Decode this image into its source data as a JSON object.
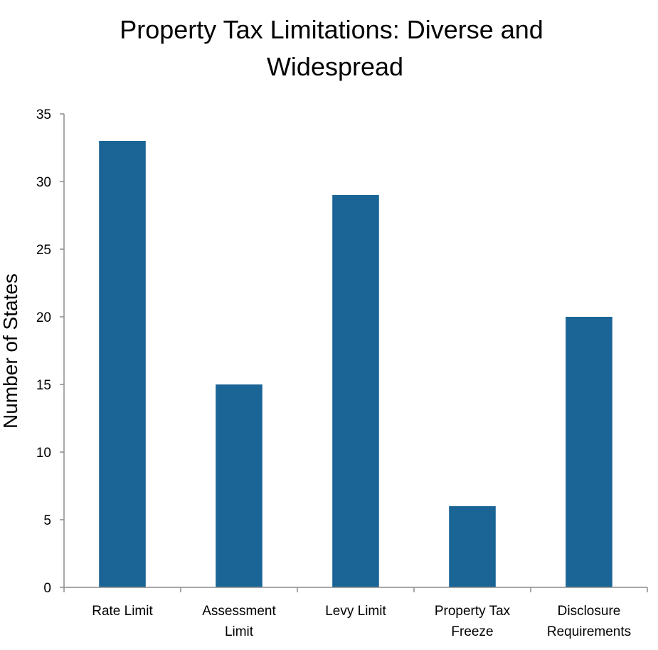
{
  "chart_data": {
    "type": "bar",
    "title": "Property Tax Limitations: Diverse and Widespread",
    "title_lines": [
      "Property Tax Limitations: Diverse and",
      "Widespread"
    ],
    "ylabel": "Number of States",
    "xlabel": "",
    "ylim": [
      0,
      35
    ],
    "yticks": [
      0,
      5,
      10,
      15,
      20,
      25,
      30,
      35
    ],
    "ytick_labels": [
      "0",
      "5",
      "10",
      "15",
      "20",
      "25",
      "30",
      "35"
    ],
    "categories": [
      "Rate Limit",
      "Assessment Limit",
      "Levy Limit",
      "Property Tax Freeze",
      "Disclosure Requirements"
    ],
    "category_lines": [
      [
        "Rate Limit"
      ],
      [
        "Assessment",
        "Limit"
      ],
      [
        "Levy Limit"
      ],
      [
        "Property Tax",
        "Freeze"
      ],
      [
        "Disclosure",
        "Requirements"
      ]
    ],
    "values": [
      33,
      15,
      29,
      6,
      20
    ],
    "bar_color": "#1a6496",
    "grid": false,
    "legend": "none"
  }
}
